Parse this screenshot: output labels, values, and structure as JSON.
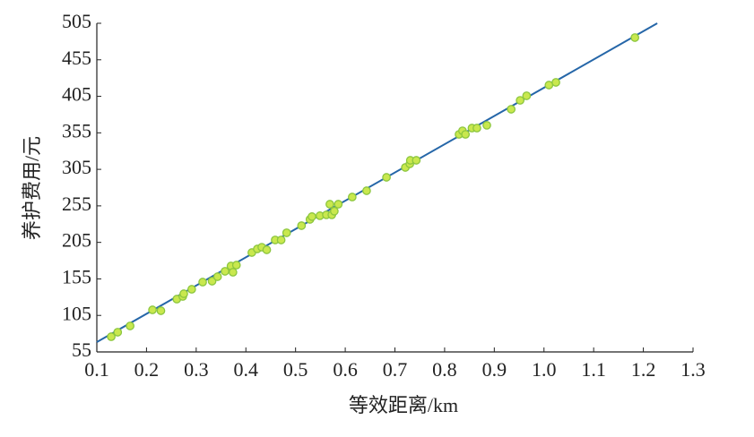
{
  "chart_data": {
    "type": "scatter",
    "xlabel": "等效距离/km",
    "ylabel": "养护费用/元",
    "xlim": [
      0.1,
      1.3
    ],
    "ylim": [
      55,
      505
    ],
    "xticks": [
      0.1,
      0.2,
      0.3,
      0.4,
      0.5,
      0.6,
      0.7,
      0.8,
      0.9,
      {
        "value": 1,
        "label": "1.0"
      },
      1.1,
      1.2,
      1.3
    ],
    "yticks": [
      55,
      105,
      155,
      205,
      255,
      305,
      355,
      405,
      455,
      505
    ],
    "color": "#c9e84e",
    "edgecolor": "#8cc63f",
    "x": [
      0.129,
      0.142,
      0.167,
      0.212,
      0.229,
      0.261,
      0.273,
      0.275,
      0.291,
      0.313,
      0.332,
      0.343,
      0.358,
      0.37,
      0.374,
      0.381,
      0.412,
      0.423,
      0.432,
      0.442,
      0.459,
      0.471,
      0.482,
      0.512,
      0.529,
      0.533,
      0.549,
      0.562,
      0.569,
      0.573,
      0.578,
      0.586,
      0.614,
      0.643,
      0.683,
      0.721,
      0.73,
      0.731,
      0.743,
      0.829,
      0.836,
      0.842,
      0.855,
      0.865,
      0.885,
      0.934,
      0.952,
      0.965,
      1.01,
      1.024,
      1.183
    ],
    "values": [
      75.8,
      82,
      90.6,
      112.6,
      111.4,
      127.3,
      131,
      134.7,
      140.8,
      150.6,
      151.9,
      158,
      165.4,
      172.7,
      164.1,
      173.9,
      191.1,
      196,
      198.4,
      194.8,
      208.3,
      208.3,
      218.1,
      227.9,
      236.5,
      240.3,
      241.5,
      242.7,
      257.3,
      242.7,
      247.7,
      257.3,
      267.1,
      275.7,
      294.1,
      307.6,
      312.5,
      317.4,
      317.4,
      352.9,
      357.8,
      352.9,
      361.5,
      361.5,
      365.3,
      387.3,
      399.5,
      405.7,
      420.4,
      424.1,
      485.4
    ],
    "fit_line": {
      "x": [
        0.1,
        1.228
      ],
      "values": [
        68.5,
        505
      ],
      "color": "#2566a8"
    }
  }
}
